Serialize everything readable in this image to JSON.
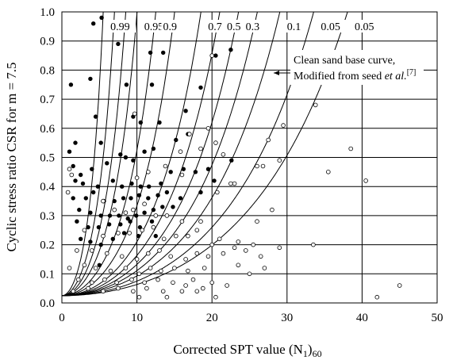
{
  "chart_data": {
    "type": "scatter",
    "xlabel": "Corrected SPT value (N",
    "xlabel_sub1": "1",
    "xlabel_paren": ")",
    "xlabel_sub2": "60",
    "ylabel": "Cyclic stress ratio CSR for m = 7.5",
    "xlim": [
      0,
      50
    ],
    "ylim": [
      0,
      1.0
    ],
    "x_ticks": [
      "0",
      "10",
      "20",
      "30",
      "40",
      "50"
    ],
    "y_ticks": [
      "0.0",
      "0.1",
      "0.2",
      "0.3",
      "0.4",
      "0.5",
      "0.6",
      "0.7",
      "0.8",
      "0.9",
      "1.0"
    ],
    "grid": true,
    "annotation": {
      "line1": "Clean sand base curve,",
      "line2_main": "Modified from seed ",
      "line2_italic": "et al.",
      "line2_sup": "[7]"
    },
    "curves": [
      {
        "label": "0.99",
        "n": 5.5
      },
      {
        "label": "",
        "n": 7.0
      },
      {
        "label": "",
        "n": 8.5
      },
      {
        "label": "0.95",
        "n": 10.0
      },
      {
        "label": "0.9",
        "n": 12.5
      },
      {
        "label": "",
        "n": 15.0
      },
      {
        "label": "0.7",
        "n": 18.5
      },
      {
        "label": "0.5",
        "n": 21.0
      },
      {
        "label": "0.3",
        "n": 23.5
      },
      {
        "label": "",
        "n": 26.0
      },
      {
        "label": "0.1",
        "n": 29.0
      },
      {
        "label": "0.05",
        "n": 33.5
      },
      {
        "label": "0.05",
        "n": 38.0
      }
    ],
    "series": [
      {
        "name": "",
        "marker": "filled",
        "points": [
          [
            4.2,
            0.96
          ],
          [
            5.3,
            0.98
          ],
          [
            7.5,
            0.89
          ],
          [
            1.2,
            0.75
          ],
          [
            3.8,
            0.77
          ],
          [
            8.6,
            0.75
          ],
          [
            11.8,
            0.86
          ],
          [
            13.5,
            0.86
          ],
          [
            12.0,
            0.75
          ],
          [
            4.5,
            0.64
          ],
          [
            9.5,
            0.64
          ],
          [
            10.5,
            0.62
          ],
          [
            13.0,
            0.62
          ],
          [
            16.5,
            0.66
          ],
          [
            18.5,
            0.74
          ],
          [
            20.5,
            0.85
          ],
          [
            22.5,
            0.87
          ],
          [
            1.0,
            0.52
          ],
          [
            1.8,
            0.55
          ],
          [
            5.2,
            0.55
          ],
          [
            1.5,
            0.47
          ],
          [
            2.5,
            0.44
          ],
          [
            4.0,
            0.46
          ],
          [
            6.0,
            0.48
          ],
          [
            7.8,
            0.51
          ],
          [
            8.5,
            0.5
          ],
          [
            9.5,
            0.49
          ],
          [
            11.0,
            0.52
          ],
          [
            12.2,
            0.53
          ],
          [
            15.2,
            0.56
          ],
          [
            16.8,
            0.58
          ],
          [
            1.8,
            0.42
          ],
          [
            2.8,
            0.41
          ],
          [
            4.8,
            0.4
          ],
          [
            6.8,
            0.42
          ],
          [
            8.0,
            0.4
          ],
          [
            9.3,
            0.41
          ],
          [
            10.5,
            0.4
          ],
          [
            11.6,
            0.4
          ],
          [
            13.2,
            0.41
          ],
          [
            14.5,
            0.45
          ],
          [
            16.2,
            0.46
          ],
          [
            17.8,
            0.45
          ],
          [
            19.5,
            0.46
          ],
          [
            1.5,
            0.36
          ],
          [
            3.2,
            0.36
          ],
          [
            4.2,
            0.38
          ],
          [
            5.6,
            0.35
          ],
          [
            7.0,
            0.35
          ],
          [
            8.2,
            0.36
          ],
          [
            9.2,
            0.36
          ],
          [
            10.3,
            0.37
          ],
          [
            11.5,
            0.36
          ],
          [
            12.8,
            0.37
          ],
          [
            14.0,
            0.38
          ],
          [
            2.3,
            0.32
          ],
          [
            3.8,
            0.31
          ],
          [
            5.2,
            0.3
          ],
          [
            6.4,
            0.3
          ],
          [
            7.6,
            0.3
          ],
          [
            8.8,
            0.29
          ],
          [
            9.9,
            0.3
          ],
          [
            11.0,
            0.31
          ],
          [
            12.2,
            0.32
          ],
          [
            13.4,
            0.33
          ],
          [
            14.8,
            0.33
          ],
          [
            15.8,
            0.36
          ],
          [
            18.5,
            0.38
          ],
          [
            20.3,
            0.42
          ],
          [
            22.6,
            0.49
          ],
          [
            2.0,
            0.28
          ],
          [
            3.5,
            0.26
          ],
          [
            4.9,
            0.26
          ],
          [
            6.3,
            0.27
          ],
          [
            7.8,
            0.27
          ],
          [
            9.1,
            0.28
          ],
          [
            10.4,
            0.26
          ],
          [
            12.0,
            0.28
          ],
          [
            2.5,
            0.22
          ],
          [
            3.8,
            0.21
          ],
          [
            5.2,
            0.2
          ],
          [
            6.8,
            0.22
          ],
          [
            8.3,
            0.24
          ],
          [
            10.2,
            0.23
          ],
          [
            12.5,
            0.23
          ],
          [
            5.0,
            0.13
          ]
        ]
      },
      {
        "name": "",
        "marker": "open",
        "points": [
          [
            20.0,
            0.85
          ],
          [
            9.7,
            0.65
          ],
          [
            19.5,
            0.6
          ],
          [
            17.0,
            0.58
          ],
          [
            20.5,
            0.55
          ],
          [
            15.8,
            0.52
          ],
          [
            18.5,
            0.53
          ],
          [
            21.5,
            0.51
          ],
          [
            27.5,
            0.56
          ],
          [
            29.5,
            0.61
          ],
          [
            29.0,
            0.49
          ],
          [
            26.0,
            0.47
          ],
          [
            26.8,
            0.47
          ],
          [
            22.5,
            0.41
          ],
          [
            23.0,
            0.41
          ],
          [
            20.7,
            0.38
          ],
          [
            35.5,
            0.45
          ],
          [
            38.5,
            0.53
          ],
          [
            40.5,
            0.42
          ],
          [
            33.8,
            0.68
          ],
          [
            11.5,
            0.45
          ],
          [
            13.8,
            0.47
          ],
          [
            16.0,
            0.44
          ],
          [
            10.0,
            0.43
          ],
          [
            1.0,
            0.46
          ],
          [
            1.3,
            0.44
          ],
          [
            0.8,
            0.38
          ],
          [
            5.5,
            0.35
          ],
          [
            7.0,
            0.32
          ],
          [
            8.5,
            0.31
          ],
          [
            9.5,
            0.32
          ],
          [
            11.0,
            0.34
          ],
          [
            12.5,
            0.3
          ],
          [
            14.0,
            0.3
          ],
          [
            16.0,
            0.28
          ],
          [
            18.5,
            0.28
          ],
          [
            3.0,
            0.25
          ],
          [
            5.5,
            0.23
          ],
          [
            7.5,
            0.24
          ],
          [
            9.0,
            0.24
          ],
          [
            10.7,
            0.25
          ],
          [
            12.2,
            0.26
          ],
          [
            13.6,
            0.22
          ],
          [
            15.2,
            0.23
          ],
          [
            16.8,
            0.23
          ],
          [
            18.0,
            0.25
          ],
          [
            21.0,
            0.22
          ],
          [
            20.0,
            0.2
          ],
          [
            23.5,
            0.21
          ],
          [
            24.5,
            0.18
          ],
          [
            26.5,
            0.16
          ],
          [
            25.5,
            0.2
          ],
          [
            29.0,
            0.19
          ],
          [
            33.5,
            0.2
          ],
          [
            26.0,
            0.28
          ],
          [
            28.0,
            0.32
          ],
          [
            2.0,
            0.18
          ],
          [
            4.0,
            0.18
          ],
          [
            6.0,
            0.17
          ],
          [
            8.0,
            0.16
          ],
          [
            10.0,
            0.15
          ],
          [
            11.5,
            0.17
          ],
          [
            13.0,
            0.18
          ],
          [
            14.5,
            0.16
          ],
          [
            16.5,
            0.15
          ],
          [
            18.0,
            0.17
          ],
          [
            19.5,
            0.16
          ],
          [
            21.5,
            0.17
          ],
          [
            23.0,
            0.19
          ],
          [
            1.0,
            0.12
          ],
          [
            3.0,
            0.13
          ],
          [
            4.5,
            0.12
          ],
          [
            6.5,
            0.11
          ],
          [
            8.5,
            0.12
          ],
          [
            10.3,
            0.1
          ],
          [
            11.8,
            0.12
          ],
          [
            13.2,
            0.11
          ],
          [
            15.0,
            0.12
          ],
          [
            16.8,
            0.11
          ],
          [
            19.0,
            0.12
          ],
          [
            25.0,
            0.1
          ],
          [
            2.2,
            0.08
          ],
          [
            4.0,
            0.07
          ],
          [
            5.7,
            0.08
          ],
          [
            7.3,
            0.07
          ],
          [
            9.3,
            0.08
          ],
          [
            11.0,
            0.07
          ],
          [
            12.8,
            0.08
          ],
          [
            14.8,
            0.07
          ],
          [
            17.5,
            0.08
          ],
          [
            20.0,
            0.07
          ],
          [
            22.0,
            0.06
          ],
          [
            1.5,
            0.04
          ],
          [
            3.5,
            0.05
          ],
          [
            5.5,
            0.04
          ],
          [
            7.5,
            0.05
          ],
          [
            9.5,
            0.04
          ],
          [
            11.3,
            0.05
          ],
          [
            13.5,
            0.04
          ],
          [
            16.0,
            0.04
          ],
          [
            18.0,
            0.04
          ],
          [
            10.3,
            0.02
          ],
          [
            14.0,
            0.02
          ],
          [
            20.5,
            0.02
          ],
          [
            42.0,
            0.02
          ],
          [
            45.0,
            0.06
          ],
          [
            23.5,
            0.13
          ],
          [
            27.0,
            0.12
          ],
          [
            18.8,
            0.05
          ],
          [
            16.5,
            0.06
          ]
        ]
      }
    ]
  }
}
